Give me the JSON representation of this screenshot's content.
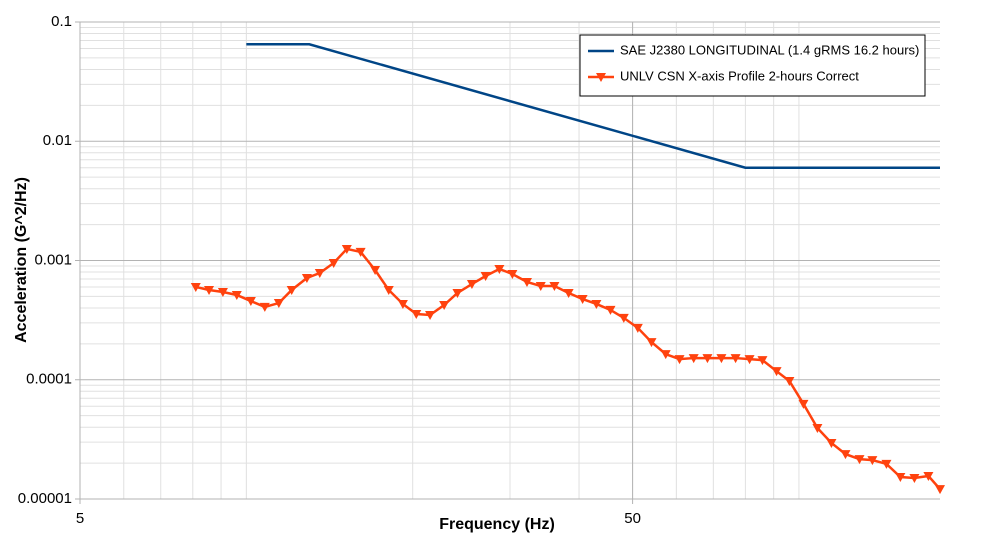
{
  "chart_data": {
    "type": "line",
    "xlabel": "Frequency (Hz)",
    "ylabel": "Acceleration (G^2/Hz)",
    "xlog": true,
    "ylog": true,
    "grid": true,
    "minor_grid": true,
    "legend": "upper right",
    "xlim": [
      5,
      180
    ],
    "xticks": [
      5,
      50
    ],
    "ylim": [
      1e-05,
      0.1
    ],
    "yticks": [
      1e-05,
      0.0001,
      0.001,
      0.01,
      0.1
    ],
    "series": [
      {
        "name": "SAE J2380 LONGITUDINAL (1.4 gRMS 16.2 hours)",
        "color": "#004586",
        "marker": "none",
        "x": [
          10,
          13,
          80,
          180
        ],
        "values": [
          0.065,
          0.065,
          0.006,
          0.006
        ]
      },
      {
        "name": "UNLV CSN X-axis Profile 2-hours Correct",
        "color": "#ff420e",
        "marker": "triangle-down",
        "x": [
          8.1,
          8.56,
          9.07,
          9.61,
          10.19,
          10.8,
          11.45,
          12.08,
          12.87,
          13.58,
          14.39,
          15.2,
          16.1,
          17.1,
          18.1,
          19.2,
          20.3,
          21.5,
          22.8,
          24.1,
          25.6,
          27.1,
          28.7,
          30.3,
          32.2,
          34.1,
          36.1,
          38.3,
          40.6,
          43.0,
          45.6,
          48.2,
          51.1,
          54.1,
          57.4,
          60.8,
          64.5,
          68.3,
          72.4,
          76.8,
          81.4,
          85.9,
          91.1,
          96.1,
          101.9,
          108,
          114.5,
          121.4,
          128.7,
          135.8,
          144,
          152.6,
          161.8,
          171.5,
          180
        ],
        "values": [
          0.0006,
          0.000566,
          0.000544,
          0.000514,
          0.000457,
          0.000408,
          0.00044,
          0.000566,
          0.000713,
          0.000785,
          0.000953,
          0.00125,
          0.00118,
          0.000832,
          0.000566,
          0.000432,
          0.000356,
          0.000349,
          0.000423,
          0.000534,
          0.000635,
          0.000741,
          0.000849,
          0.000771,
          0.000661,
          0.000611,
          0.000611,
          0.000534,
          0.000475,
          0.000432,
          0.000385,
          0.00033,
          0.000272,
          0.000207,
          0.000164,
          0.000149,
          0.000152,
          0.000152,
          0.000152,
          0.000152,
          0.000149,
          0.000146,
          0.000118,
          9.77e-05,
          6.27e-05,
          3.94e-05,
          2.95e-05,
          2.38e-05,
          2.16e-05,
          2.12e-05,
          1.97e-05,
          1.53e-05,
          1.5e-05,
          1.56e-05,
          1.21e-05
        ]
      }
    ]
  }
}
